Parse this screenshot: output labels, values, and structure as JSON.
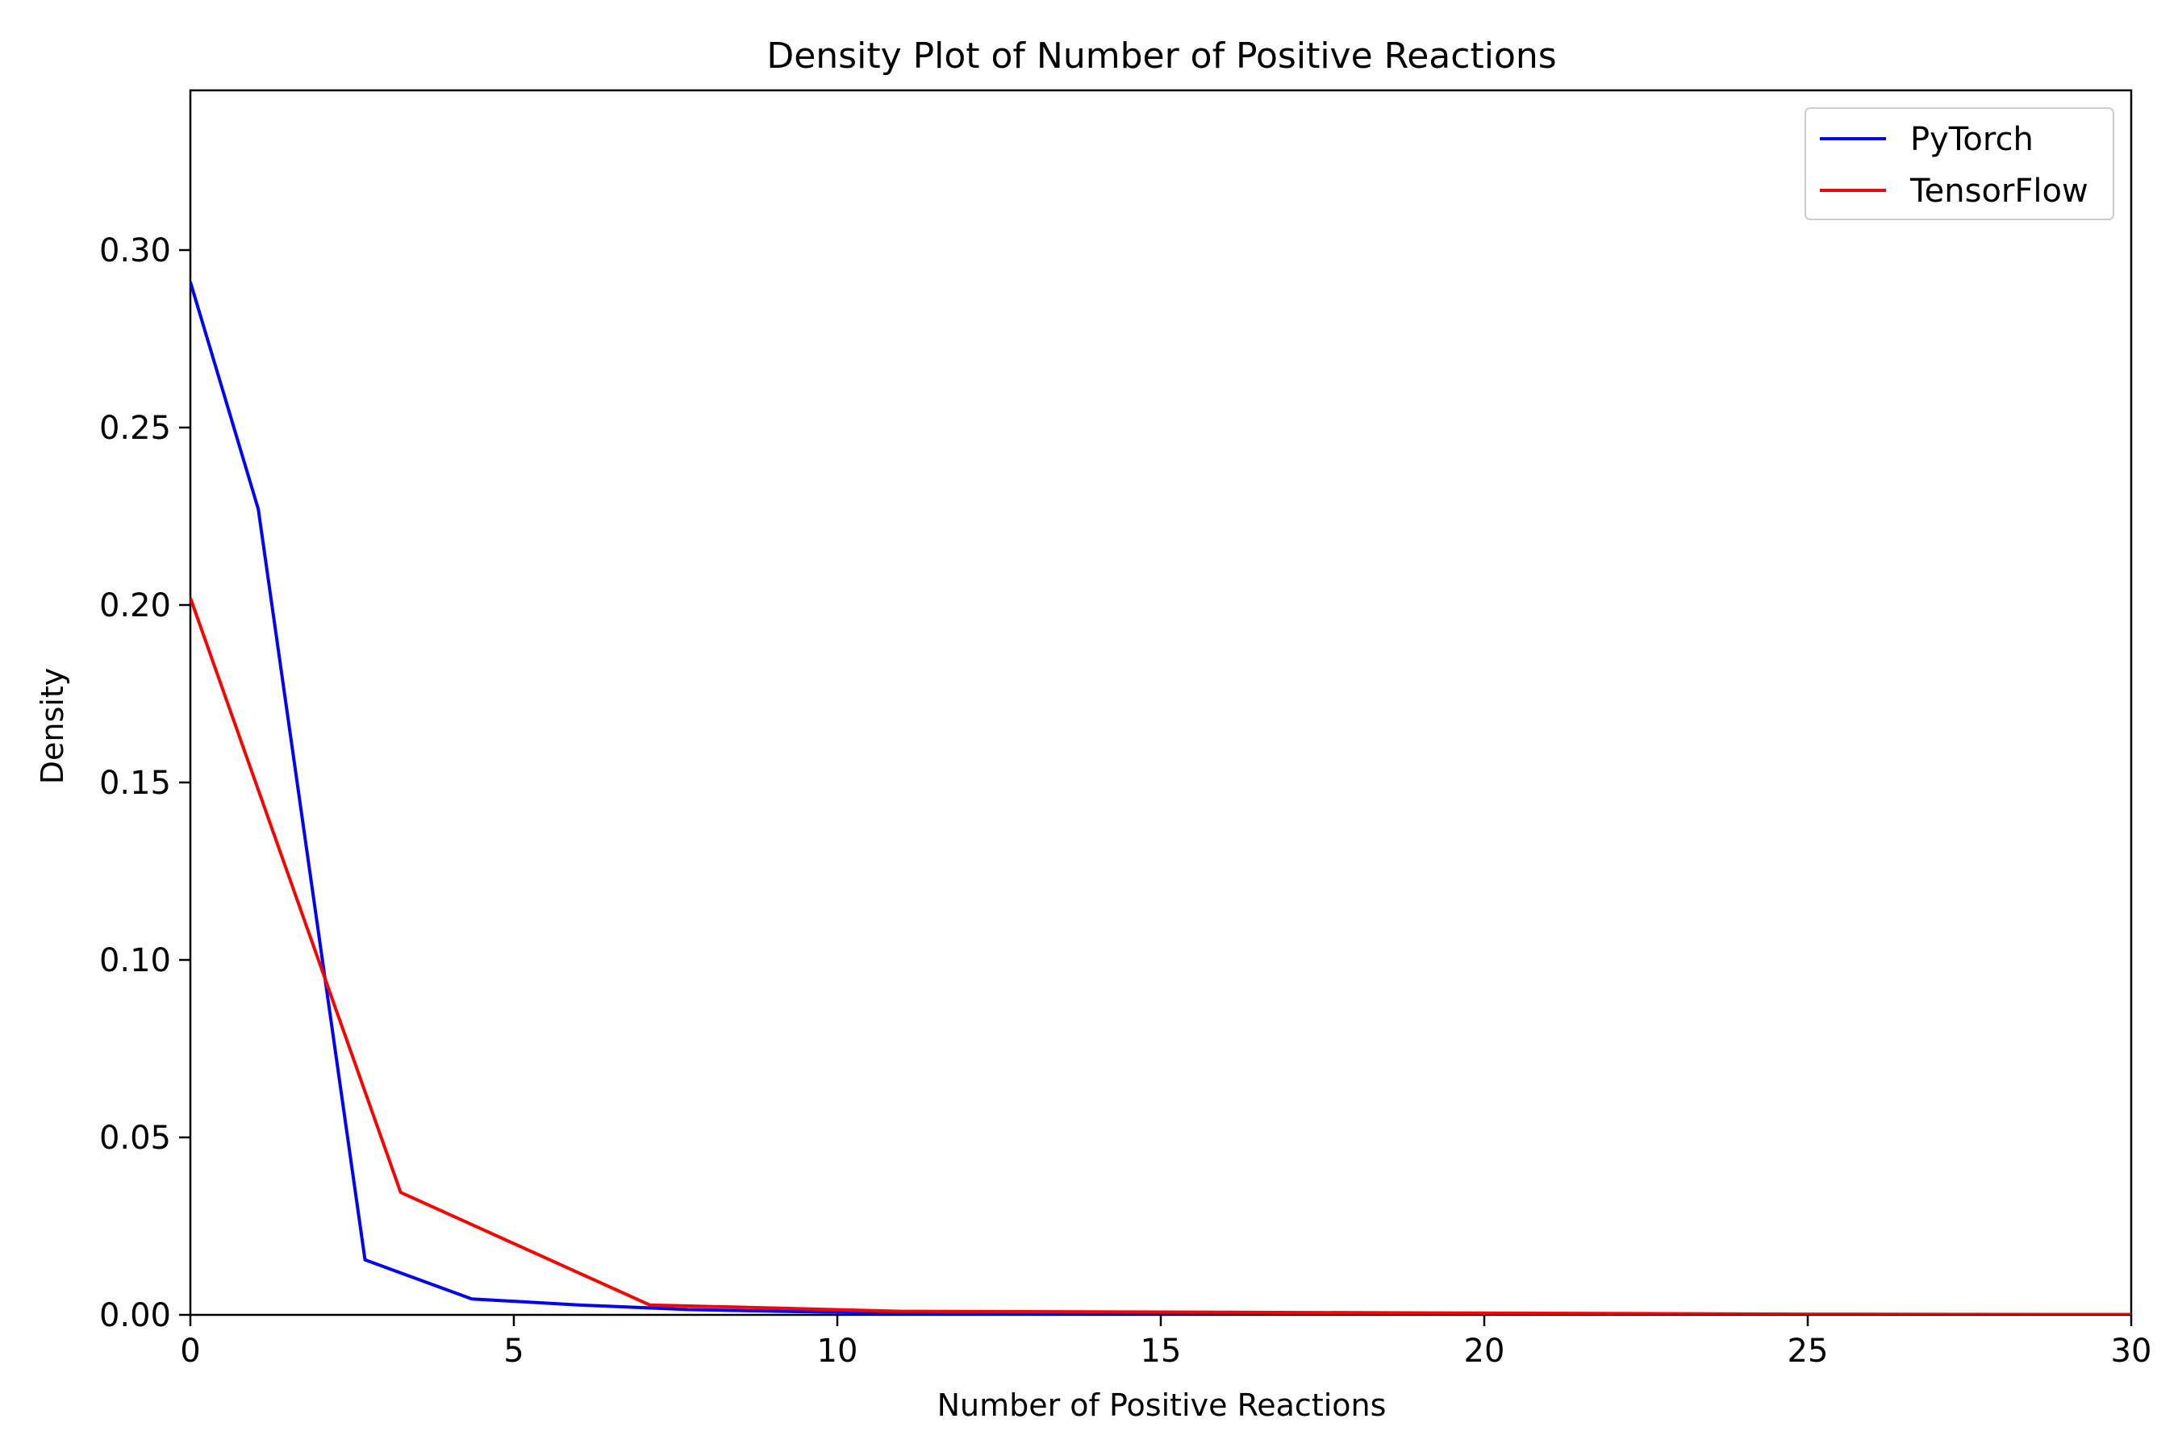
{
  "chart_data": {
    "type": "line",
    "title": "Density Plot of Number of Positive Reactions",
    "xlabel": "Number of Positive Reactions",
    "ylabel": "Density",
    "xlim": [
      0,
      30
    ],
    "ylim": [
      0,
      0.345
    ],
    "x_ticks": [
      0,
      5,
      10,
      15,
      20,
      25,
      30
    ],
    "x_tick_labels": [
      "0",
      "5",
      "10",
      "15",
      "20",
      "25",
      "30"
    ],
    "y_ticks": [
      0,
      0.05,
      0.1,
      0.15,
      0.2,
      0.25,
      0.3
    ],
    "y_tick_labels": [
      "0.00",
      "0.05",
      "0.10",
      "0.15",
      "0.20",
      "0.25",
      "0.30"
    ],
    "grid": false,
    "legend_position": "top-right",
    "series": [
      {
        "name": "PyTorch",
        "color": "#0000ff",
        "x": [
          0,
          1.05,
          2.7,
          4.35,
          6.0,
          7.7,
          9.4,
          11.0,
          15.0,
          20.0,
          25.0,
          30.0
        ],
        "y": [
          0.291,
          0.227,
          0.0155,
          0.0045,
          0.0028,
          0.0015,
          0.0009,
          0.0005,
          0.0003,
          0.0002,
          0.0001,
          0.0001
        ]
      },
      {
        "name": "TensorFlow",
        "color": "#ff0000",
        "x": [
          0,
          3.25,
          7.1,
          11.0,
          15.0,
          20.0,
          25.0,
          30.0
        ],
        "y": [
          0.202,
          0.0345,
          0.0028,
          0.001,
          0.0008,
          0.0005,
          0.0002,
          0.0001
        ]
      }
    ]
  }
}
